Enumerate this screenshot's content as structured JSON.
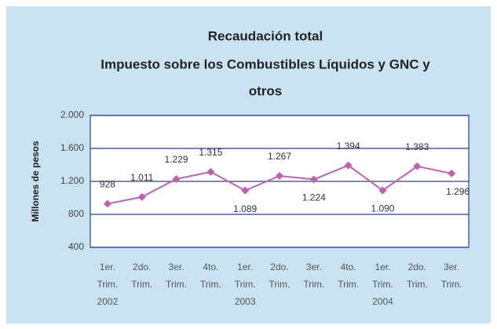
{
  "chart_data": {
    "type": "line",
    "title": [
      "Recaudación total",
      "Impuesto sobre los Combustibles Líquidos y GNC y",
      "otros"
    ],
    "y_label": "Millones de pesos",
    "categories": [
      [
        "1er.",
        "Trim.",
        "2002"
      ],
      [
        "2do.",
        "Trim."
      ],
      [
        "3er.",
        "Trim."
      ],
      [
        "4to.",
        "Trim."
      ],
      [
        "1er.",
        "Trim.",
        "2003"
      ],
      [
        "2do.",
        "Trim."
      ],
      [
        "3er.",
        "Trim."
      ],
      [
        "4to.",
        "Trim."
      ],
      [
        "1er.",
        "Trim.",
        "2004"
      ],
      [
        "2do.",
        "Trim."
      ],
      [
        "3er.",
        "Trim."
      ]
    ],
    "values": [
      928,
      1011,
      1229,
      1315,
      1089,
      1267,
      1224,
      1394,
      1090,
      1383,
      1296
    ],
    "value_labels": [
      "928",
      "1.011",
      "1.229",
      "1.315",
      "1.089",
      "1.267",
      "1.224",
      "1.394",
      "1.090",
      "1.383",
      "1.296"
    ],
    "color": "#c060b0",
    "ylim": [
      400,
      2000
    ],
    "yticks": [
      400,
      800,
      {
        "value": 1200,
        "label": "1.200"
      },
      {
        "value": 1600,
        "label": "1.600"
      },
      {
        "value": 2000,
        "label": "2.000"
      }
    ],
    "grid": true
  }
}
